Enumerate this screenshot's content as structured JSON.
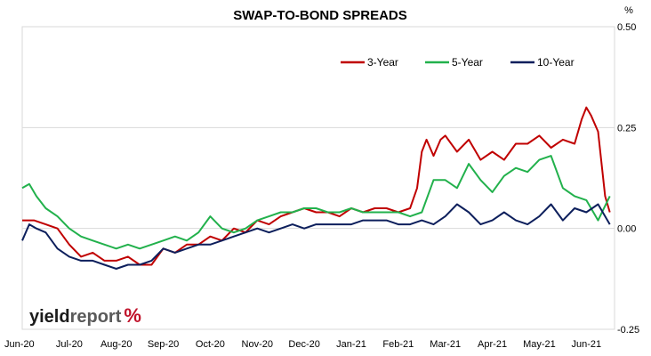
{
  "chart_data": {
    "type": "line",
    "title": "SWAP-TO-BOND SPREADS",
    "unit_label": "%",
    "xlabel": "",
    "ylabel": "",
    "ylim": [
      -0.25,
      0.5
    ],
    "y_ticks": [
      "0.50",
      "0.25",
      "0.00",
      "-0.25"
    ],
    "y_tick_values": [
      0.5,
      0.25,
      0.0,
      -0.25
    ],
    "x_tick_labels": [
      "Jun-20",
      "Jul-20",
      "Aug-20",
      "Sep-20",
      "Oct-20",
      "Nov-20",
      "Dec-20",
      "Jan-21",
      "Feb-21",
      "Mar-21",
      "Apr-21",
      "May-21",
      "Jun-21"
    ],
    "x_month_index_range": [
      0,
      12.6
    ],
    "grid": "horizontal",
    "legend_position": "top-right",
    "series": [
      {
        "name": "3-Year",
        "color": "#c00000",
        "x": [
          0,
          0.25,
          0.5,
          0.75,
          1.0,
          1.25,
          1.5,
          1.75,
          2.0,
          2.25,
          2.5,
          2.75,
          3.0,
          3.25,
          3.5,
          3.75,
          4.0,
          4.25,
          4.5,
          4.75,
          5.0,
          5.25,
          5.5,
          5.75,
          6.0,
          6.25,
          6.5,
          6.75,
          7.0,
          7.25,
          7.5,
          7.75,
          8.0,
          8.25,
          8.4,
          8.5,
          8.6,
          8.75,
          8.9,
          9.0,
          9.25,
          9.5,
          9.75,
          10.0,
          10.25,
          10.5,
          10.75,
          11.0,
          11.25,
          11.5,
          11.75,
          11.9,
          12.0,
          12.1,
          12.25,
          12.4,
          12.5
        ],
        "values": [
          0.02,
          0.02,
          0.01,
          0.0,
          -0.04,
          -0.07,
          -0.06,
          -0.08,
          -0.08,
          -0.07,
          -0.09,
          -0.09,
          -0.05,
          -0.06,
          -0.04,
          -0.04,
          -0.02,
          -0.03,
          0.0,
          -0.01,
          0.02,
          0.01,
          0.03,
          0.04,
          0.05,
          0.04,
          0.04,
          0.03,
          0.05,
          0.04,
          0.05,
          0.05,
          0.04,
          0.05,
          0.1,
          0.19,
          0.22,
          0.18,
          0.22,
          0.23,
          0.19,
          0.22,
          0.17,
          0.19,
          0.17,
          0.21,
          0.21,
          0.23,
          0.2,
          0.22,
          0.21,
          0.27,
          0.3,
          0.28,
          0.24,
          0.08,
          0.04
        ]
      },
      {
        "name": "5-Year",
        "color": "#22b14c",
        "x": [
          0,
          0.15,
          0.3,
          0.5,
          0.75,
          1.0,
          1.25,
          1.5,
          1.75,
          2.0,
          2.25,
          2.5,
          2.75,
          3.0,
          3.25,
          3.5,
          3.75,
          4.0,
          4.25,
          4.5,
          4.75,
          5.0,
          5.25,
          5.5,
          5.75,
          6.0,
          6.25,
          6.5,
          6.75,
          7.0,
          7.25,
          7.5,
          7.75,
          8.0,
          8.25,
          8.5,
          8.75,
          9.0,
          9.25,
          9.5,
          9.75,
          10.0,
          10.25,
          10.5,
          10.75,
          11.0,
          11.25,
          11.5,
          11.75,
          12.0,
          12.25,
          12.5
        ],
        "values": [
          0.1,
          0.11,
          0.08,
          0.05,
          0.03,
          0.0,
          -0.02,
          -0.03,
          -0.04,
          -0.05,
          -0.04,
          -0.05,
          -0.04,
          -0.03,
          -0.02,
          -0.03,
          -0.01,
          0.03,
          0.0,
          -0.01,
          0.0,
          0.02,
          0.03,
          0.04,
          0.04,
          0.05,
          0.05,
          0.04,
          0.04,
          0.05,
          0.04,
          0.04,
          0.04,
          0.04,
          0.03,
          0.04,
          0.12,
          0.12,
          0.1,
          0.16,
          0.12,
          0.09,
          0.13,
          0.15,
          0.14,
          0.17,
          0.18,
          0.1,
          0.08,
          0.07,
          0.02,
          0.08
        ]
      },
      {
        "name": "10-Year",
        "color": "#0d1f5c",
        "x": [
          0,
          0.15,
          0.3,
          0.5,
          0.75,
          1.0,
          1.25,
          1.5,
          1.75,
          2.0,
          2.25,
          2.5,
          2.75,
          3.0,
          3.25,
          3.5,
          3.75,
          4.0,
          4.25,
          4.5,
          4.75,
          5.0,
          5.25,
          5.5,
          5.75,
          6.0,
          6.25,
          6.5,
          6.75,
          7.0,
          7.25,
          7.5,
          7.75,
          8.0,
          8.25,
          8.5,
          8.75,
          9.0,
          9.25,
          9.5,
          9.75,
          10.0,
          10.25,
          10.5,
          10.75,
          11.0,
          11.25,
          11.5,
          11.75,
          12.0,
          12.25,
          12.5
        ],
        "values": [
          -0.03,
          0.01,
          0.0,
          -0.01,
          -0.05,
          -0.07,
          -0.08,
          -0.08,
          -0.09,
          -0.1,
          -0.09,
          -0.09,
          -0.08,
          -0.05,
          -0.06,
          -0.05,
          -0.04,
          -0.04,
          -0.03,
          -0.02,
          -0.01,
          0.0,
          -0.01,
          0.0,
          0.01,
          0.0,
          0.01,
          0.01,
          0.01,
          0.01,
          0.02,
          0.02,
          0.02,
          0.01,
          0.01,
          0.02,
          0.01,
          0.03,
          0.06,
          0.04,
          0.01,
          0.02,
          0.04,
          0.02,
          0.01,
          0.03,
          0.06,
          0.02,
          0.05,
          0.04,
          0.06,
          0.01
        ]
      }
    ]
  },
  "logo": {
    "part1": "yield",
    "part2": "report",
    "part3": "%"
  }
}
